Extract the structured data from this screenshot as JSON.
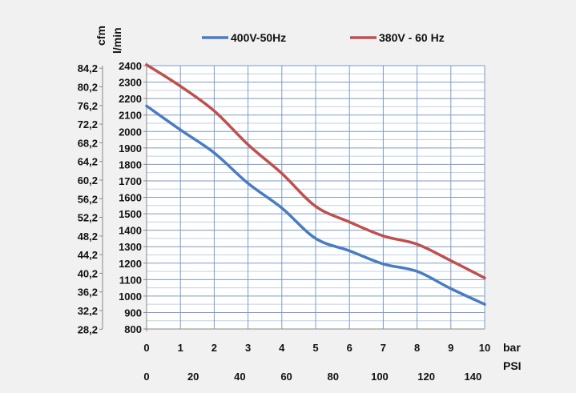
{
  "chart_data": {
    "type": "line",
    "unit_labels": {
      "left_outer": "cfm",
      "left_inner": "l/min",
      "bottom_bar": "bar",
      "bottom_psi": "PSI"
    },
    "x": [
      0,
      1,
      2,
      3,
      4,
      5,
      6,
      7,
      8,
      9,
      10
    ],
    "xlim": [
      0,
      10
    ],
    "ylim": [
      800,
      2400
    ],
    "yticks_lmin": [
      "2400",
      "2300",
      "2200",
      "2100",
      "2000",
      "1900",
      "1800",
      "1700",
      "1600",
      "1500",
      "1400",
      "1300",
      "1200",
      "1100",
      "1000",
      "900",
      "800"
    ],
    "yticks_cfm": [
      "84,2",
      "80,2",
      "76,2",
      "72,2",
      "68,2",
      "64,2",
      "60,2",
      "56,2",
      "52,2",
      "48,2",
      "44,2",
      "40,2",
      "36,2",
      "32,2",
      "28,2"
    ],
    "xticks_bar": [
      "0",
      "1",
      "2",
      "3",
      "4",
      "5",
      "6",
      "7",
      "8",
      "9",
      "10"
    ],
    "xticks_psi": [
      "0",
      "20",
      "40",
      "60",
      "80",
      "100",
      "120",
      "140"
    ],
    "grid": true,
    "legend_position": "top",
    "series": [
      {
        "name": "400V-50Hz",
        "color": "#4a7cc4",
        "values": [
          2155,
          2010,
          1870,
          1685,
          1535,
          1350,
          1275,
          1195,
          1150,
          1045,
          950
        ]
      },
      {
        "name": "380V - 60 Hz",
        "color": "#c0504d",
        "values": [
          2405,
          2275,
          2125,
          1920,
          1745,
          1545,
          1450,
          1365,
          1315,
          1215,
          1110
        ]
      }
    ]
  }
}
